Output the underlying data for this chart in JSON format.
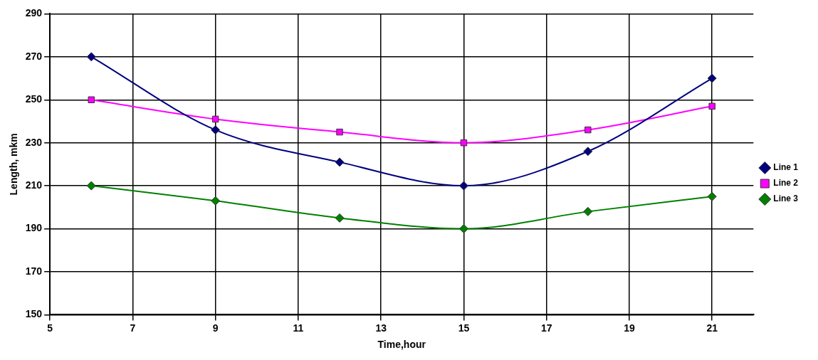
{
  "chart_data": {
    "type": "line",
    "xlabel": "Time,hour",
    "ylabel": "Length, mkm",
    "x": [
      6,
      9,
      12,
      15,
      18,
      21
    ],
    "series": [
      {
        "name": "Line 1",
        "color": "#000080",
        "marker": "diamond",
        "values": [
          270,
          236,
          221,
          210,
          226,
          260
        ]
      },
      {
        "name": "Line 2",
        "color": "#ff00ff",
        "marker": "square",
        "values": [
          250,
          241,
          235,
          230,
          236,
          247
        ]
      },
      {
        "name": "Line 3",
        "color": "#008000",
        "marker": "diamond",
        "values": [
          210,
          203,
          195,
          190,
          198,
          205
        ]
      }
    ],
    "xlim": [
      5,
      22
    ],
    "xticks": [
      5,
      7,
      9,
      11,
      13,
      15,
      17,
      19,
      21
    ],
    "ylim": [
      150,
      290
    ],
    "yticks": [
      150,
      170,
      190,
      210,
      230,
      250,
      270,
      290
    ],
    "grid": true,
    "legend": "right"
  }
}
